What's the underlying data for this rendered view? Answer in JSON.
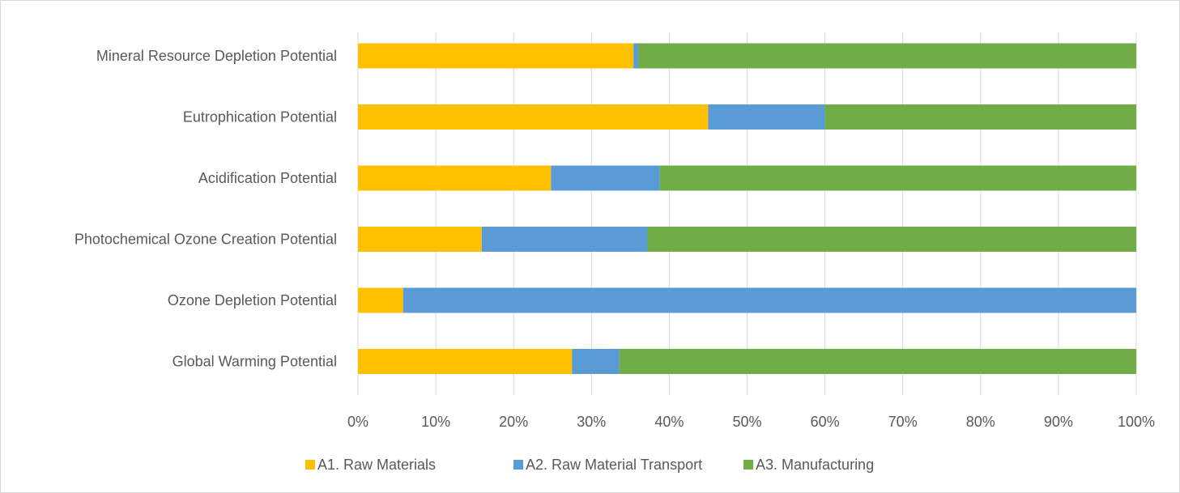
{
  "chart_data": {
    "type": "bar",
    "orientation": "horizontal",
    "stacked": "percent",
    "categories": [
      "Global Warming Potential",
      "Ozone Depletion Potential",
      "Photochemical Ozone Creation Potential",
      "Acidification Potential",
      "Eutrophication Potential",
      "Mineral Resource Depletion Potential"
    ],
    "series": [
      {
        "name": "A1. Raw Materials",
        "color": "#FFC000",
        "values": [
          27.5,
          5.8,
          15.9,
          24.8,
          45.0,
          35.4
        ]
      },
      {
        "name": "A2. Raw Material Transport",
        "color": "#5B9BD5",
        "values": [
          6.1,
          94.2,
          21.3,
          14.0,
          15.0,
          0.6
        ]
      },
      {
        "name": "A3. Manufacturing",
        "color": "#70AD47",
        "values": [
          66.4,
          0.0,
          62.8,
          61.2,
          40.0,
          64.0
        ]
      }
    ],
    "xticks": [
      "0%",
      "10%",
      "20%",
      "30%",
      "40%",
      "50%",
      "60%",
      "70%",
      "80%",
      "90%",
      "100%"
    ],
    "xlim": [
      0,
      100
    ],
    "grid": true,
    "legend_position": "bottom",
    "title": "",
    "xlabel": "",
    "ylabel": ""
  }
}
